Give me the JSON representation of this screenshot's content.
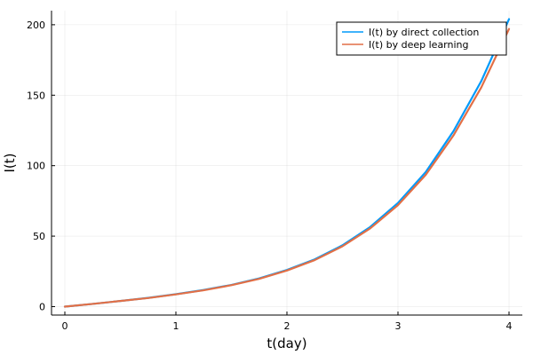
{
  "chart_data": {
    "type": "line",
    "title": "",
    "xlabel": "t(day)",
    "ylabel": "I(t)",
    "xlim": [
      -0.12,
      4.12
    ],
    "ylim": [
      -6,
      210
    ],
    "xticks": [
      0,
      1,
      2,
      3,
      4
    ],
    "yticks": [
      0,
      50,
      100,
      150,
      200
    ],
    "grid": true,
    "legend_position": "top-right",
    "x": [
      0,
      0.25,
      0.5,
      0.75,
      1,
      1.25,
      1.5,
      1.75,
      2,
      2.25,
      2.5,
      2.75,
      3,
      3.25,
      3.5,
      3.75,
      4
    ],
    "series": [
      {
        "name": "I(t) by direct collection",
        "color": "#009AFA",
        "values": [
          0,
          1.9,
          4.0,
          6.2,
          8.8,
          11.8,
          15.4,
          20.0,
          26.0,
          33.5,
          43.5,
          56.5,
          73.5,
          95.5,
          124.5,
          160.0,
          204.0
        ]
      },
      {
        "name": "I(t) by deep learning",
        "color": "#E26F46",
        "values": [
          0,
          1.9,
          4.0,
          6.1,
          8.7,
          11.6,
          15.2,
          19.7,
          25.6,
          33.0,
          42.8,
          55.5,
          72.0,
          93.5,
          121.5,
          155.5,
          197.0
        ]
      }
    ]
  }
}
